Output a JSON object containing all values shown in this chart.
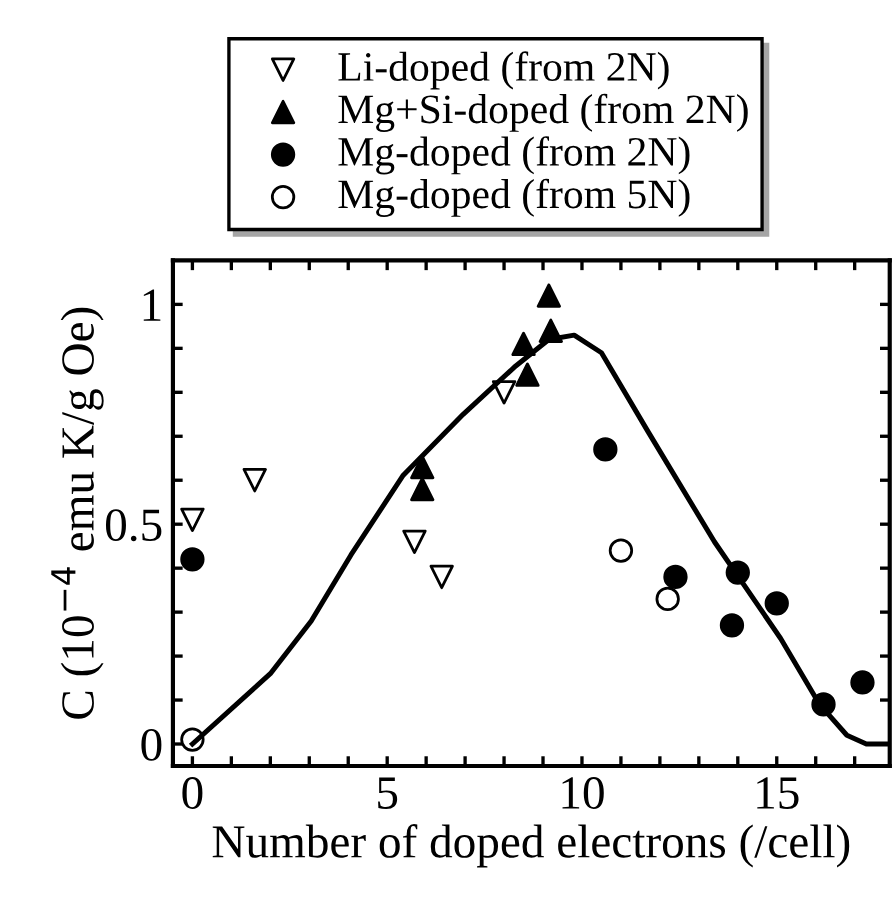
{
  "chart_data": {
    "type": "scatter",
    "xlabel": "Number of doped electrons (/cell)",
    "ylabel": "C (10$^{−4}$ emu K/g Oe)",
    "xlim": [
      -0.5,
      17.9
    ],
    "ylim": [
      -0.05,
      1.1
    ],
    "xticks": [
      0,
      {
        "value": 1,
        "label": null
      },
      {
        "value": 2,
        "label": null
      },
      {
        "value": 3,
        "label": null
      },
      {
        "value": 4,
        "label": null
      },
      5,
      {
        "value": 6,
        "label": null
      },
      {
        "value": 7,
        "label": null
      },
      {
        "value": 8,
        "label": null
      },
      {
        "value": 9,
        "label": null
      },
      10,
      {
        "value": 11,
        "label": null
      },
      {
        "value": 12,
        "label": null
      },
      {
        "value": 13,
        "label": null
      },
      {
        "value": 14,
        "label": null
      },
      15,
      {
        "value": 16,
        "label": null
      },
      {
        "value": 17,
        "label": null
      }
    ],
    "yticks": [
      0,
      {
        "value": 0.1,
        "label": null
      },
      {
        "value": 0.2,
        "label": null
      },
      {
        "value": 0.3,
        "label": null
      },
      {
        "value": 0.4,
        "label": null
      },
      {
        "value": 0.5,
        "label": "0.5"
      },
      {
        "value": 0.6,
        "label": null
      },
      {
        "value": 0.7,
        "label": null
      },
      {
        "value": 0.8,
        "label": null
      },
      {
        "value": 0.9,
        "label": null
      },
      1
    ],
    "grid": false,
    "legend": "top",
    "series": [
      {
        "name": "Li-doped (from 2N)",
        "marker": "triangle_down-open",
        "color": "#000000",
        "x": [
          0,
          1.6,
          5.7,
          6.4,
          8.0
        ],
        "values": [
          0.51,
          0.6,
          0.46,
          0.38,
          0.8
        ]
      },
      {
        "name": "Mg+Si-doped (from 2N)",
        "marker": "triangle",
        "color": "#000000",
        "x": [
          5.9,
          5.9,
          8.5,
          8.6,
          9.15,
          9.2
        ],
        "values": [
          0.63,
          0.58,
          0.91,
          0.84,
          1.02,
          0.94
        ]
      },
      {
        "name": "Mg-doped (from 2N)",
        "marker": "circle",
        "color": "#000000",
        "x": [
          0,
          10.6,
          12.4,
          14.0,
          13.85,
          15.0,
          16.2,
          17.2
        ],
        "values": [
          0.42,
          0.67,
          0.38,
          0.39,
          0.27,
          0.32,
          0.09,
          0.14
        ]
      },
      {
        "name": "Mg-doped (from 5N)",
        "marker": "circle-open",
        "color": "#000000",
        "x": [
          0,
          11.0,
          12.2
        ],
        "values": [
          0.01,
          0.44,
          0.33
        ]
      },
      {
        "type": "line",
        "marker": "none",
        "line_style": "solid",
        "color": "#000000",
        "x": [
          0,
          2.0,
          3.05,
          4.07,
          5.4,
          6.95,
          8.3,
          9.15,
          9.8,
          10.5,
          11.7,
          13.4,
          15.1,
          16.1,
          16.8,
          17.3,
          17.9
        ],
        "values": [
          0,
          0.16,
          0.28,
          0.43,
          0.61,
          0.75,
          0.86,
          0.92,
          0.93,
          0.89,
          0.71,
          0.46,
          0.24,
          0.09,
          0.02,
          0,
          0
        ]
      }
    ]
  }
}
